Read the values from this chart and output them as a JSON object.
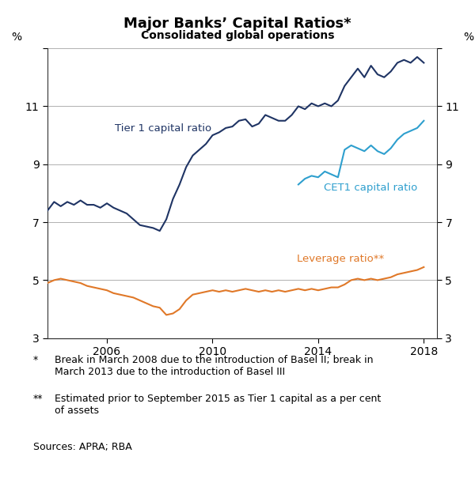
{
  "title": "Major Banks’ Capital Ratios*",
  "subtitle": "Consolidated global operations",
  "ylabel_left": "%",
  "ylabel_right": "%",
  "ylim": [
    3,
    13
  ],
  "yticks": [
    3,
    5,
    7,
    9,
    11,
    13
  ],
  "ytick_labels": [
    "3",
    "5",
    "7",
    "9",
    "11",
    ""
  ],
  "xlim_start": 2003.75,
  "xlim_end": 2018.5,
  "xticks": [
    2006,
    2010,
    2014,
    2018
  ],
  "tier1_color": "#1f3464",
  "cet1_color": "#2e9fce",
  "leverage_color": "#e07828",
  "tier1_x": [
    2003.75,
    2004.0,
    2004.25,
    2004.5,
    2004.75,
    2005.0,
    2005.25,
    2005.5,
    2005.75,
    2006.0,
    2006.25,
    2006.5,
    2006.75,
    2007.0,
    2007.25,
    2007.5,
    2007.75,
    2008.0,
    2008.25,
    2008.5,
    2008.75,
    2009.0,
    2009.25,
    2009.5,
    2009.75,
    2010.0,
    2010.25,
    2010.5,
    2010.75,
    2011.0,
    2011.25,
    2011.5,
    2011.75,
    2012.0,
    2012.25,
    2012.5,
    2012.75,
    2013.0,
    2013.25,
    2013.5,
    2013.75,
    2014.0,
    2014.25,
    2014.5,
    2014.75,
    2015.0,
    2015.25,
    2015.5,
    2015.75,
    2016.0,
    2016.25,
    2016.5,
    2016.75,
    2017.0,
    2017.25,
    2017.5,
    2017.75,
    2018.0
  ],
  "tier1_y": [
    7.4,
    7.7,
    7.55,
    7.7,
    7.6,
    7.75,
    7.6,
    7.6,
    7.5,
    7.65,
    7.5,
    7.4,
    7.3,
    7.1,
    6.9,
    6.85,
    6.8,
    6.7,
    7.1,
    7.8,
    8.3,
    8.9,
    9.3,
    9.5,
    9.7,
    10.0,
    10.1,
    10.25,
    10.3,
    10.5,
    10.55,
    10.3,
    10.4,
    10.7,
    10.6,
    10.5,
    10.5,
    10.7,
    11.0,
    10.9,
    11.1,
    11.0,
    11.1,
    11.0,
    11.2,
    11.7,
    12.0,
    12.3,
    12.0,
    12.4,
    12.1,
    12.0,
    12.2,
    12.5,
    12.6,
    12.5,
    12.7,
    12.5
  ],
  "cet1_x": [
    2013.25,
    2013.5,
    2013.75,
    2014.0,
    2014.25,
    2014.5,
    2014.75,
    2015.0,
    2015.25,
    2015.5,
    2015.75,
    2016.0,
    2016.25,
    2016.5,
    2016.75,
    2017.0,
    2017.25,
    2017.5,
    2017.75,
    2018.0
  ],
  "cet1_y": [
    8.3,
    8.5,
    8.6,
    8.55,
    8.75,
    8.65,
    8.55,
    9.5,
    9.65,
    9.55,
    9.45,
    9.65,
    9.45,
    9.35,
    9.55,
    9.85,
    10.05,
    10.15,
    10.25,
    10.5
  ],
  "leverage_x": [
    2003.75,
    2004.0,
    2004.25,
    2004.5,
    2004.75,
    2005.0,
    2005.25,
    2005.5,
    2005.75,
    2006.0,
    2006.25,
    2006.5,
    2006.75,
    2007.0,
    2007.25,
    2007.5,
    2007.75,
    2008.0,
    2008.25,
    2008.5,
    2008.75,
    2009.0,
    2009.25,
    2009.5,
    2009.75,
    2010.0,
    2010.25,
    2010.5,
    2010.75,
    2011.0,
    2011.25,
    2011.5,
    2011.75,
    2012.0,
    2012.25,
    2012.5,
    2012.75,
    2013.0,
    2013.25,
    2013.5,
    2013.75,
    2014.0,
    2014.25,
    2014.5,
    2014.75,
    2015.0,
    2015.25,
    2015.5,
    2015.75,
    2016.0,
    2016.25,
    2016.5,
    2016.75,
    2017.0,
    2017.25,
    2017.5,
    2017.75,
    2018.0
  ],
  "leverage_y": [
    4.9,
    5.0,
    5.05,
    5.0,
    4.95,
    4.9,
    4.8,
    4.75,
    4.7,
    4.65,
    4.55,
    4.5,
    4.45,
    4.4,
    4.3,
    4.2,
    4.1,
    4.05,
    3.8,
    3.85,
    4.0,
    4.3,
    4.5,
    4.55,
    4.6,
    4.65,
    4.6,
    4.65,
    4.6,
    4.65,
    4.7,
    4.65,
    4.6,
    4.65,
    4.6,
    4.65,
    4.6,
    4.65,
    4.7,
    4.65,
    4.7,
    4.65,
    4.7,
    4.75,
    4.75,
    4.85,
    5.0,
    5.05,
    5.0,
    5.05,
    5.0,
    5.05,
    5.1,
    5.2,
    5.25,
    5.3,
    5.35,
    5.45
  ],
  "tier1_label": "Tier 1 capital ratio",
  "cet1_label": "CET1 capital ratio",
  "leverage_label": "Leverage ratio**",
  "footnote1_star": "*",
  "footnote1_text": "Break in March 2008 due to the introduction of Basel II; break in\nMarch 2013 due to the introduction of Basel III",
  "footnote2_star": "**",
  "footnote2_text": "Estimated prior to September 2015 as Tier 1 capital as a per cent\nof assets",
  "sources": "Sources: APRA; RBA",
  "background_color": "#ffffff",
  "grid_color": "#b0b0b0",
  "axis_color": "#444444",
  "spine_color": "#333333"
}
